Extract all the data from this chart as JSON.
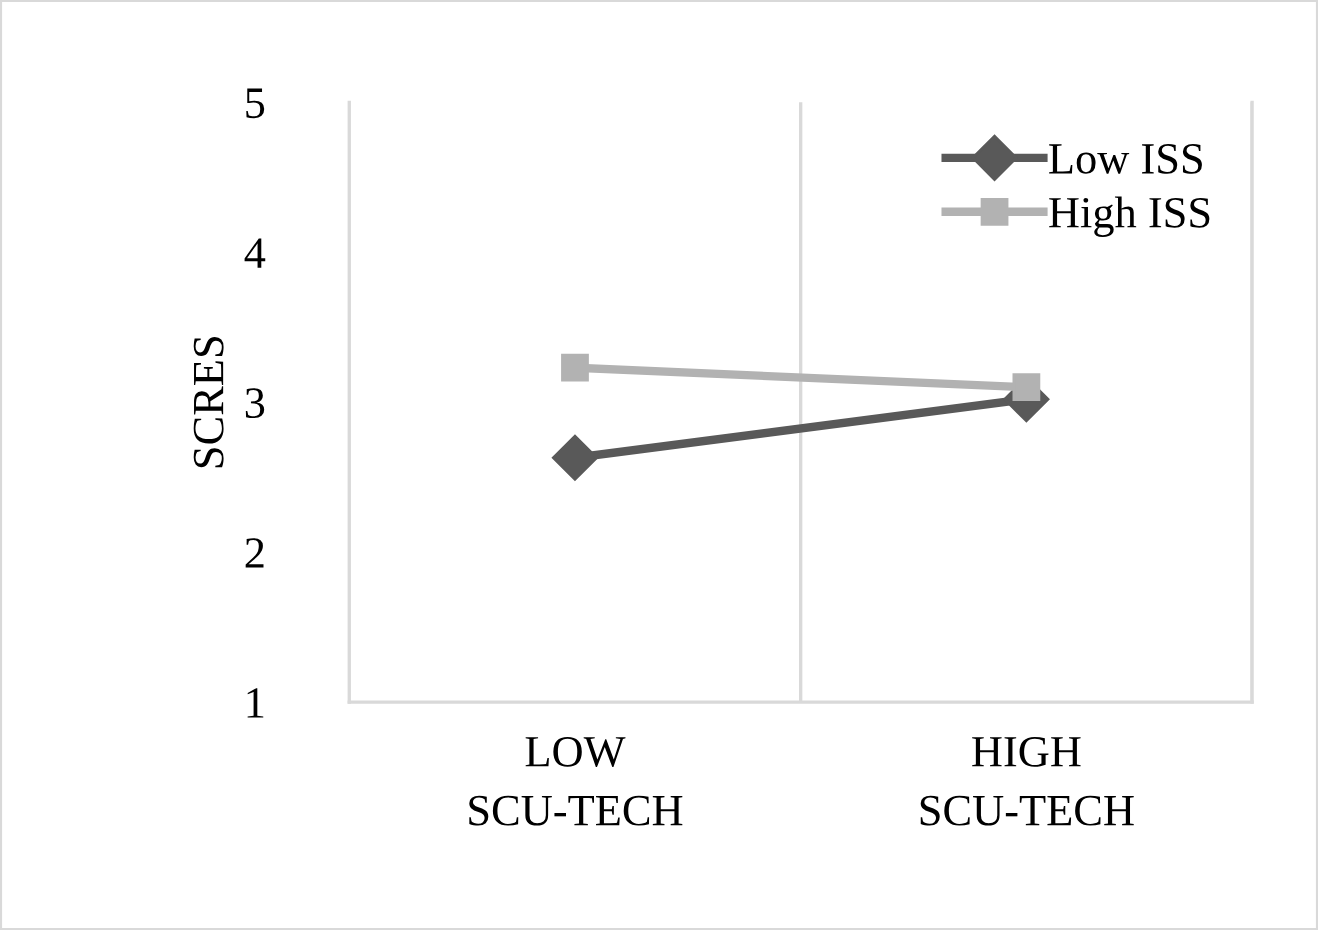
{
  "chart_data": {
    "type": "line",
    "ylabel": "SCRES",
    "categories": [
      "LOW SCU-TECH",
      "HIGH SCU-TECH"
    ],
    "series": [
      {
        "name": "Low ISS",
        "color": "#595959",
        "values": [
          2.63,
          3.02
        ],
        "marker": "diamond"
      },
      {
        "name": "High ISS",
        "color": "#b2b2b2",
        "values": [
          3.23,
          3.1
        ],
        "marker": "square"
      }
    ],
    "ylim": [
      1,
      5
    ],
    "yticks": [
      1,
      2,
      3,
      4,
      5
    ],
    "grid": "x",
    "legend": "top right",
    "line_style": "solid"
  }
}
